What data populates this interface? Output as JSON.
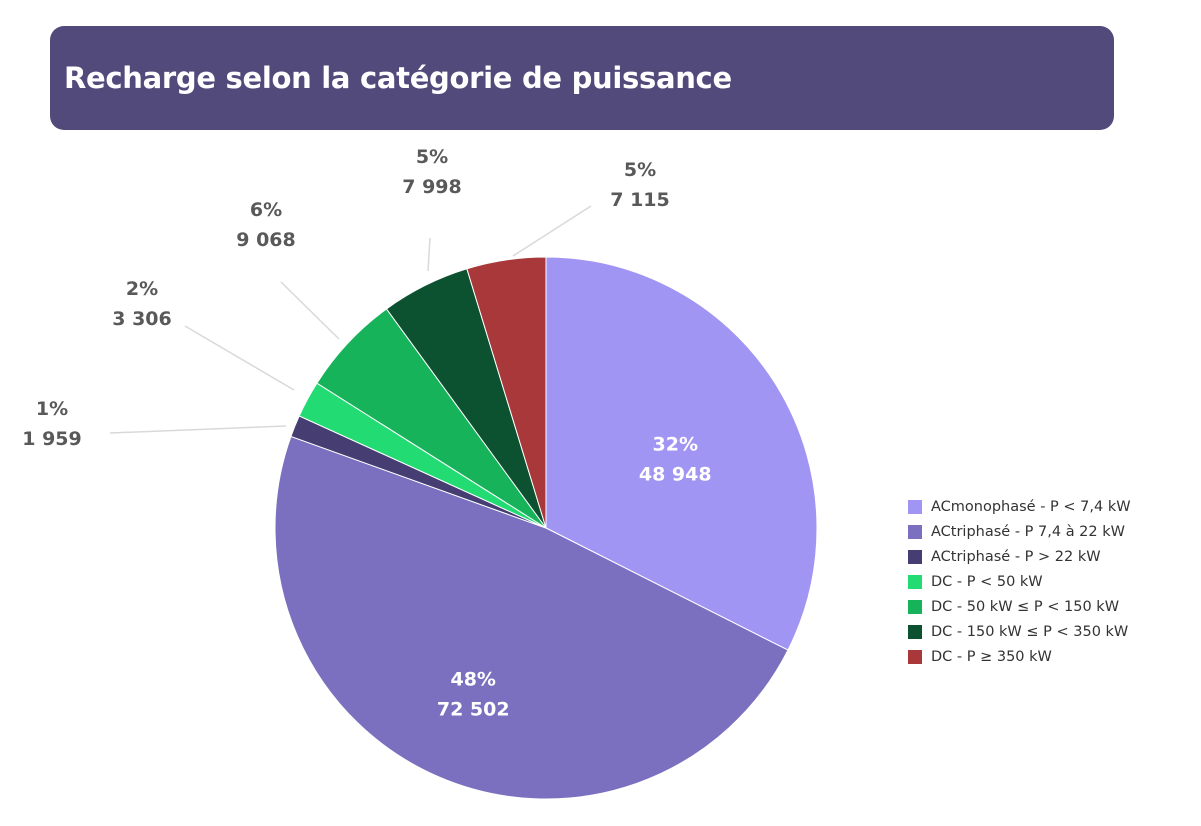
{
  "header": {
    "title": "Recharge selon la catégorie de puissance"
  },
  "chart_data": {
    "type": "pie",
    "title": "Recharge selon la catégorie de puissance",
    "legend_position": "right",
    "slices": [
      {
        "name": "ACmonophasé - P < 7,4 kW",
        "value": 48948,
        "value_label": "48 948",
        "percent_label": "32%",
        "color": "#a195f4"
      },
      {
        "name": "ACtriphasé - P 7,4 à 22 kW",
        "value": 72502,
        "value_label": "72 502",
        "percent_label": "48%",
        "color": "#7b70bf"
      },
      {
        "name": "ACtriphasé - P > 22 kW",
        "value": 1959,
        "value_label": "1 959",
        "percent_label": "1%",
        "color": "#463e73"
      },
      {
        "name": "DC - P < 50 kW",
        "value": 3306,
        "value_label": "3 306",
        "percent_label": "2%",
        "color": "#22dc73"
      },
      {
        "name": "DC - 50 kW ≤ P < 150 kW",
        "value": 9068,
        "value_label": "9 068",
        "percent_label": "6%",
        "color": "#17b35a"
      },
      {
        "name": "DC - 150 kW  ≤ P < 350 kW",
        "value": 7998,
        "value_label": "7 998",
        "percent_label": "5%",
        "color": "#0c5230"
      },
      {
        "name": "DC - P ≥ 350 kW",
        "value": 7115,
        "value_label": "7 115",
        "percent_label": "5%",
        "color": "#a9383a"
      }
    ]
  }
}
